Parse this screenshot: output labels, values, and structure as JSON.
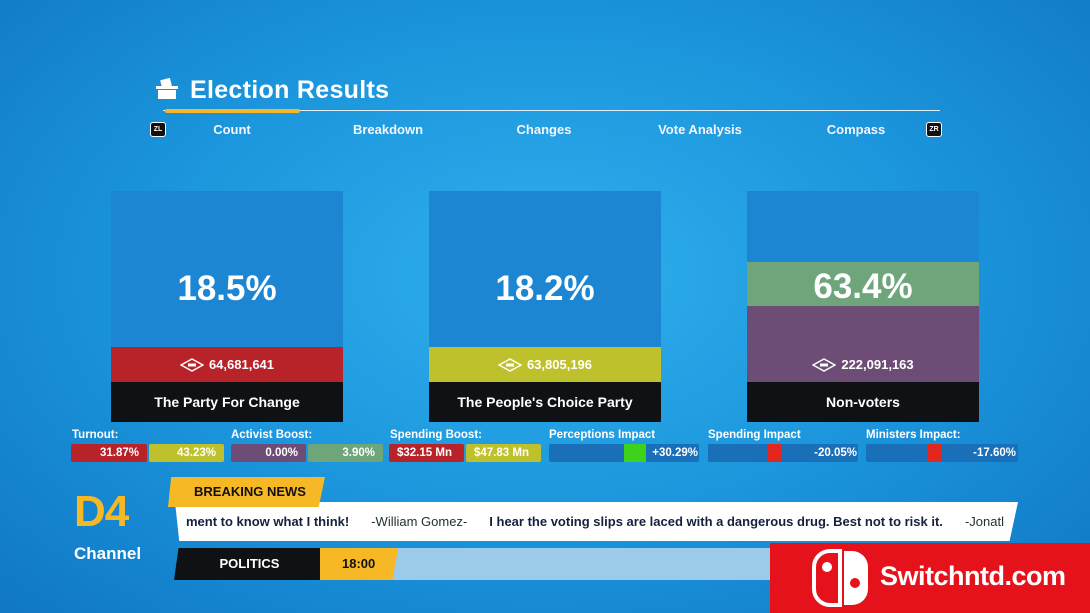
{
  "header": {
    "title": "Election Results",
    "icon": "ballot-box-icon"
  },
  "tabs": {
    "left_key": "ZL",
    "right_key": "ZR",
    "items": [
      "Count",
      "Breakdown",
      "Changes",
      "Vote Analysis",
      "Compass"
    ],
    "active_index": 0
  },
  "parties": [
    {
      "percent": "18.5%",
      "votes": "64,681,641",
      "name": "The Party For Change",
      "color": "#b8232a"
    },
    {
      "percent": "18.2%",
      "votes": "63,805,196",
      "name": "The People's Choice Party",
      "color": "#bfc12c"
    },
    {
      "percent": "63.4%",
      "votes": "222,091,163",
      "name": "Non-voters",
      "color": "#6d4d75"
    }
  ],
  "stats": {
    "turnout": {
      "label": "Turnout:",
      "a": "31.87%",
      "b": "43.23%"
    },
    "activist_boost": {
      "label": "Activist Boost:",
      "a": "0.00%",
      "b": "3.90%"
    },
    "spending_boost": {
      "label": "Spending Boost:",
      "a": "$32.15 Mn",
      "b": "$47.83 Mn"
    },
    "perceptions_impact": {
      "label": "Perceptions Impact",
      "value": "+30.29%"
    },
    "spending_impact": {
      "label": "Spending Impact",
      "value": "-20.05%"
    },
    "ministers_impact": {
      "label": "Ministers Impact:",
      "value": "-17.60%"
    }
  },
  "news": {
    "channel_code": "D4",
    "channel_label": "Channel",
    "breaking": "BREAKING NEWS",
    "ticker": [
      {
        "text": "ment to know what I think!",
        "author": "-William Gomez-"
      },
      {
        "text": "I hear the voting slips are laced with a dangerous drug. Best not to risk it.",
        "author": "-Jonatl"
      }
    ],
    "category": "POLITICS",
    "time": "18:00"
  },
  "watermark": {
    "text": "Switchntd.com"
  },
  "colors": {
    "accent": "#f7b825",
    "card": "#1d86d3",
    "dark": "#0f1114"
  }
}
